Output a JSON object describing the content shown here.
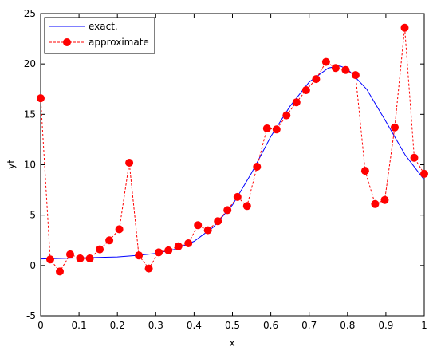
{
  "chart_data": {
    "type": "line",
    "title": "",
    "xlabel": "x",
    "ylabel": "yt",
    "xlim": [
      0,
      1
    ],
    "ylim": [
      -5,
      25
    ],
    "xticks": [
      "0",
      "0.1",
      "0.2",
      "0.3",
      "0.4",
      "0.5",
      "0.6",
      "0.7",
      "0.8",
      "0.9",
      "1"
    ],
    "yticks": [
      "-5",
      "0",
      "5",
      "10",
      "15",
      "20",
      "25"
    ],
    "grid": false,
    "legend_position": "top-left",
    "series": [
      {
        "name": "exact.",
        "style": "solid",
        "color": "#0000ff",
        "x": [
          0,
          0.05,
          0.1,
          0.15,
          0.2,
          0.25,
          0.3,
          0.35,
          0.4,
          0.45,
          0.5,
          0.55,
          0.6,
          0.65,
          0.7,
          0.75,
          0.78,
          0.8,
          0.85,
          0.9,
          0.95,
          1.0
        ],
        "y": [
          0.65,
          0.7,
          0.75,
          0.8,
          0.85,
          1.0,
          1.2,
          1.6,
          2.4,
          3.8,
          6.0,
          9.2,
          12.8,
          15.8,
          18.2,
          19.6,
          19.8,
          19.5,
          17.5,
          14.3,
          11.0,
          8.5
        ]
      },
      {
        "name": "approximate",
        "style": "dashed",
        "marker": "circle",
        "color": "#ff0000",
        "x": [
          0,
          0.025,
          0.05,
          0.077,
          0.103,
          0.128,
          0.154,
          0.179,
          0.205,
          0.231,
          0.256,
          0.282,
          0.308,
          0.333,
          0.359,
          0.385,
          0.41,
          0.436,
          0.462,
          0.487,
          0.513,
          0.538,
          0.564,
          0.59,
          0.615,
          0.641,
          0.667,
          0.692,
          0.718,
          0.744,
          0.769,
          0.795,
          0.821,
          0.846,
          0.872,
          0.897,
          0.923,
          0.949,
          0.974,
          1.0
        ],
        "y": [
          16.6,
          0.6,
          -0.6,
          1.1,
          0.7,
          0.7,
          1.6,
          2.5,
          3.6,
          10.2,
          1.0,
          -0.3,
          1.3,
          1.5,
          1.9,
          2.2,
          4.0,
          3.5,
          4.4,
          5.5,
          6.8,
          5.9,
          9.8,
          13.6,
          13.5,
          14.9,
          16.2,
          17.4,
          18.5,
          20.2,
          19.6,
          19.4,
          18.9,
          9.4,
          6.1,
          6.5,
          13.7,
          23.6,
          10.7,
          9.1
        ]
      }
    ]
  }
}
